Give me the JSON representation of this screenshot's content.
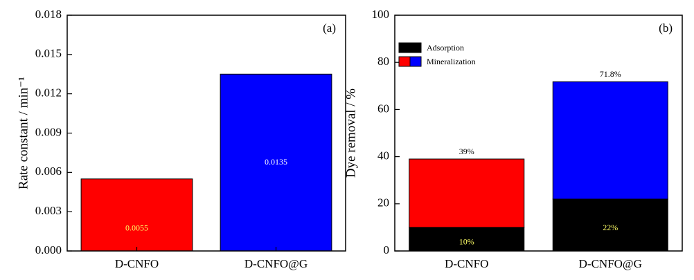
{
  "chart_data": [
    {
      "type": "bar",
      "panel_label": "(a)",
      "y_label": "Rate constant / min⁻¹",
      "categories": [
        "D-CNFO",
        "D-CNFO@G"
      ],
      "values": [
        0.0055,
        0.0135
      ],
      "colors": [
        "#ff0000",
        "#0000ff"
      ],
      "ylim": [
        0,
        0.018
      ],
      "yticks": [
        {
          "value": 0,
          "label": "0.000"
        },
        0.003,
        0.006,
        0.009,
        0.012,
        0.015,
        0.018
      ]
    },
    {
      "type": "stacked_bar",
      "panel_label": "(b)",
      "y_label": "Dye removal / %",
      "categories": [
        "D-CNFO",
        "D-CNFO@G"
      ],
      "series": [
        {
          "name": "Adsorption",
          "color": "#000000",
          "values": [
            10,
            22
          ],
          "value_labels": [
            "10%",
            "22%"
          ]
        },
        {
          "name": "Mineralization",
          "colors": [
            "#ff0000",
            "#0000ff"
          ],
          "values": [
            29,
            49.8
          ]
        }
      ],
      "totals": [
        39,
        71.8
      ],
      "total_labels": [
        "39%",
        "71.8%"
      ],
      "ylim": [
        0,
        100
      ],
      "yticks": [
        0,
        20,
        40,
        60,
        80,
        100
      ],
      "legend": "upper left"
    }
  ]
}
